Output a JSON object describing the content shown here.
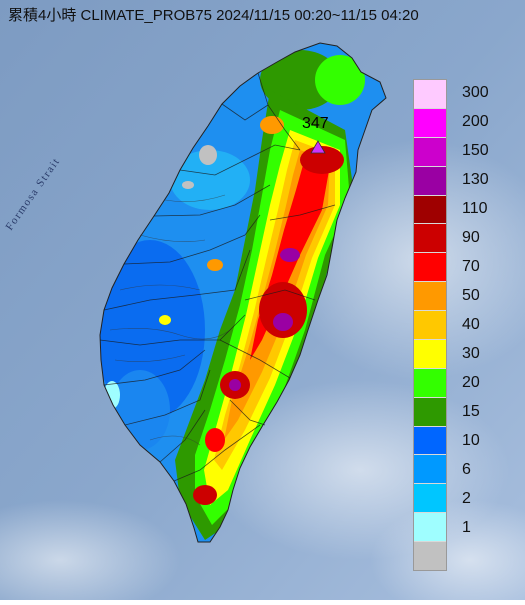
{
  "title": "累積4小時 CLIMATE_PROB75 2024/11/15 00:20~11/15 04:20",
  "strait_label": "Formosa Strait",
  "max_marker": {
    "value": "347",
    "icon": "triangle-marker-icon",
    "color": "#cc33ff"
  },
  "legend": [
    {
      "label": "300",
      "color": "#fecaff"
    },
    {
      "label": "200",
      "color": "#ff00ff"
    },
    {
      "label": "150",
      "color": "#cc00cc"
    },
    {
      "label": "130",
      "color": "#9a00a3"
    },
    {
      "label": "110",
      "color": "#9f0000"
    },
    {
      "label": "90",
      "color": "#cc0000"
    },
    {
      "label": "70",
      "color": "#ff0000"
    },
    {
      "label": "50",
      "color": "#ff9900"
    },
    {
      "label": "40",
      "color": "#ffc800"
    },
    {
      "label": "30",
      "color": "#ffff00"
    },
    {
      "label": "20",
      "color": "#33ff00"
    },
    {
      "label": "15",
      "color": "#2e9900"
    },
    {
      "label": "10",
      "color": "#0066ff"
    },
    {
      "label": "6",
      "color": "#0099ff"
    },
    {
      "label": "2",
      "color": "#00c6ff"
    },
    {
      "label": "1",
      "color": "#9ffeff"
    },
    {
      "label": "",
      "color": "#c1c1c1"
    }
  ]
}
